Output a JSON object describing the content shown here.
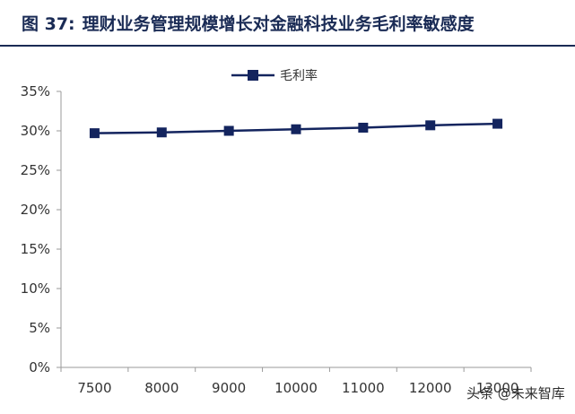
{
  "figure": {
    "label": "图 37:",
    "title": "理财业务管理规模增长对金融科技业务毛利率敏感度"
  },
  "watermark": "头条 @未来智库",
  "colors": {
    "series": "#13245e",
    "axis": "#9a9a9a",
    "title": "#1a2b55"
  },
  "chart_data": {
    "type": "line",
    "categories": [
      "7500",
      "8000",
      "9000",
      "10000",
      "11000",
      "12000",
      "13000"
    ],
    "series": [
      {
        "name": "毛利率",
        "values": [
          29.7,
          29.8,
          30.0,
          30.2,
          30.4,
          30.7,
          30.9
        ]
      }
    ],
    "ylim": [
      0,
      35
    ],
    "yticks": [
      "0%",
      "5%",
      "10%",
      "15%",
      "20%",
      "25%",
      "30%",
      "35%"
    ],
    "legend_position": "top-center",
    "grid": false
  }
}
